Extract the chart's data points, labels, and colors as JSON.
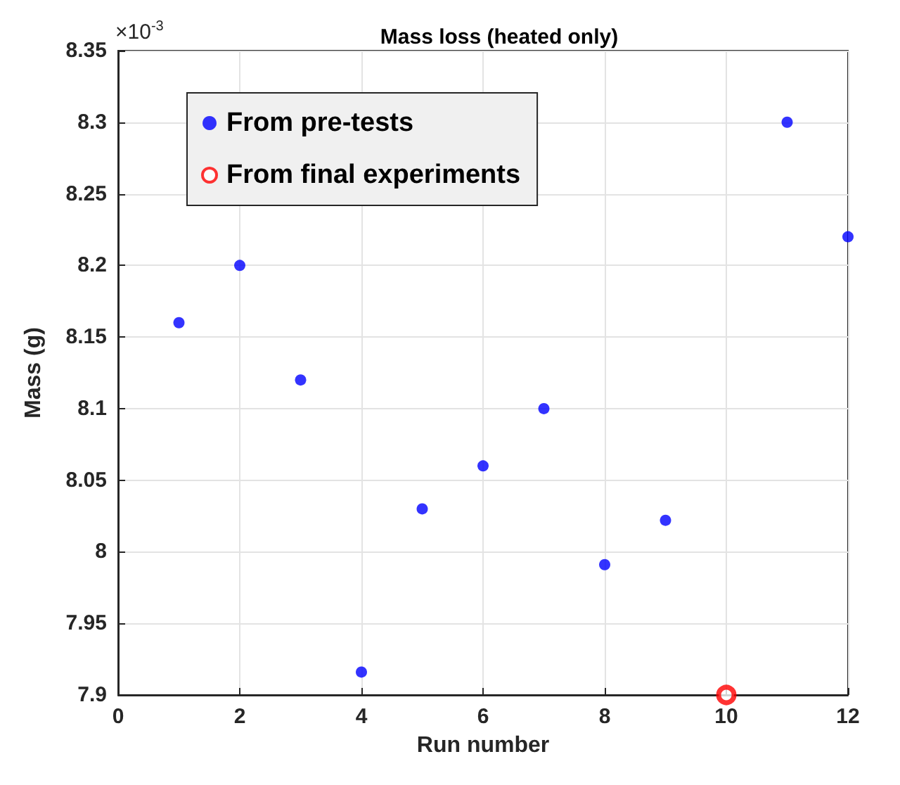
{
  "chart_data": {
    "type": "scatter",
    "title": "Mass loss (heated only)",
    "xlabel": "Run number",
    "ylabel": "Mass (g)",
    "annotations": [
      "×10$^{-3}$"
    ],
    "series": [
      {
        "name": "From pre-tests",
        "color": "#0000ff",
        "x": [
          1,
          2,
          3,
          4,
          5,
          6,
          7,
          8,
          9,
          11,
          12
        ],
        "values": [
          8.16,
          8.2,
          8.12,
          7.916,
          8.03,
          8.06,
          8.1,
          7.991,
          8.022,
          8.3,
          8.22
        ]
      },
      {
        "name": "From final experiments",
        "color": "#ff0000",
        "x": [
          10
        ],
        "values": [
          7.9
        ]
      }
    ],
    "xlim": [
      0,
      12
    ],
    "xticks": [
      0,
      2,
      4,
      6,
      8,
      10,
      12
    ],
    "ylim": [
      7.9,
      8.35
    ],
    "yticks": [
      7.9,
      7.95,
      8,
      8.05,
      8.1,
      8.15,
      8.2,
      8.25,
      8.3,
      8.35
    ],
    "grid": true,
    "legend": "top left",
    "marker": "circle"
  }
}
